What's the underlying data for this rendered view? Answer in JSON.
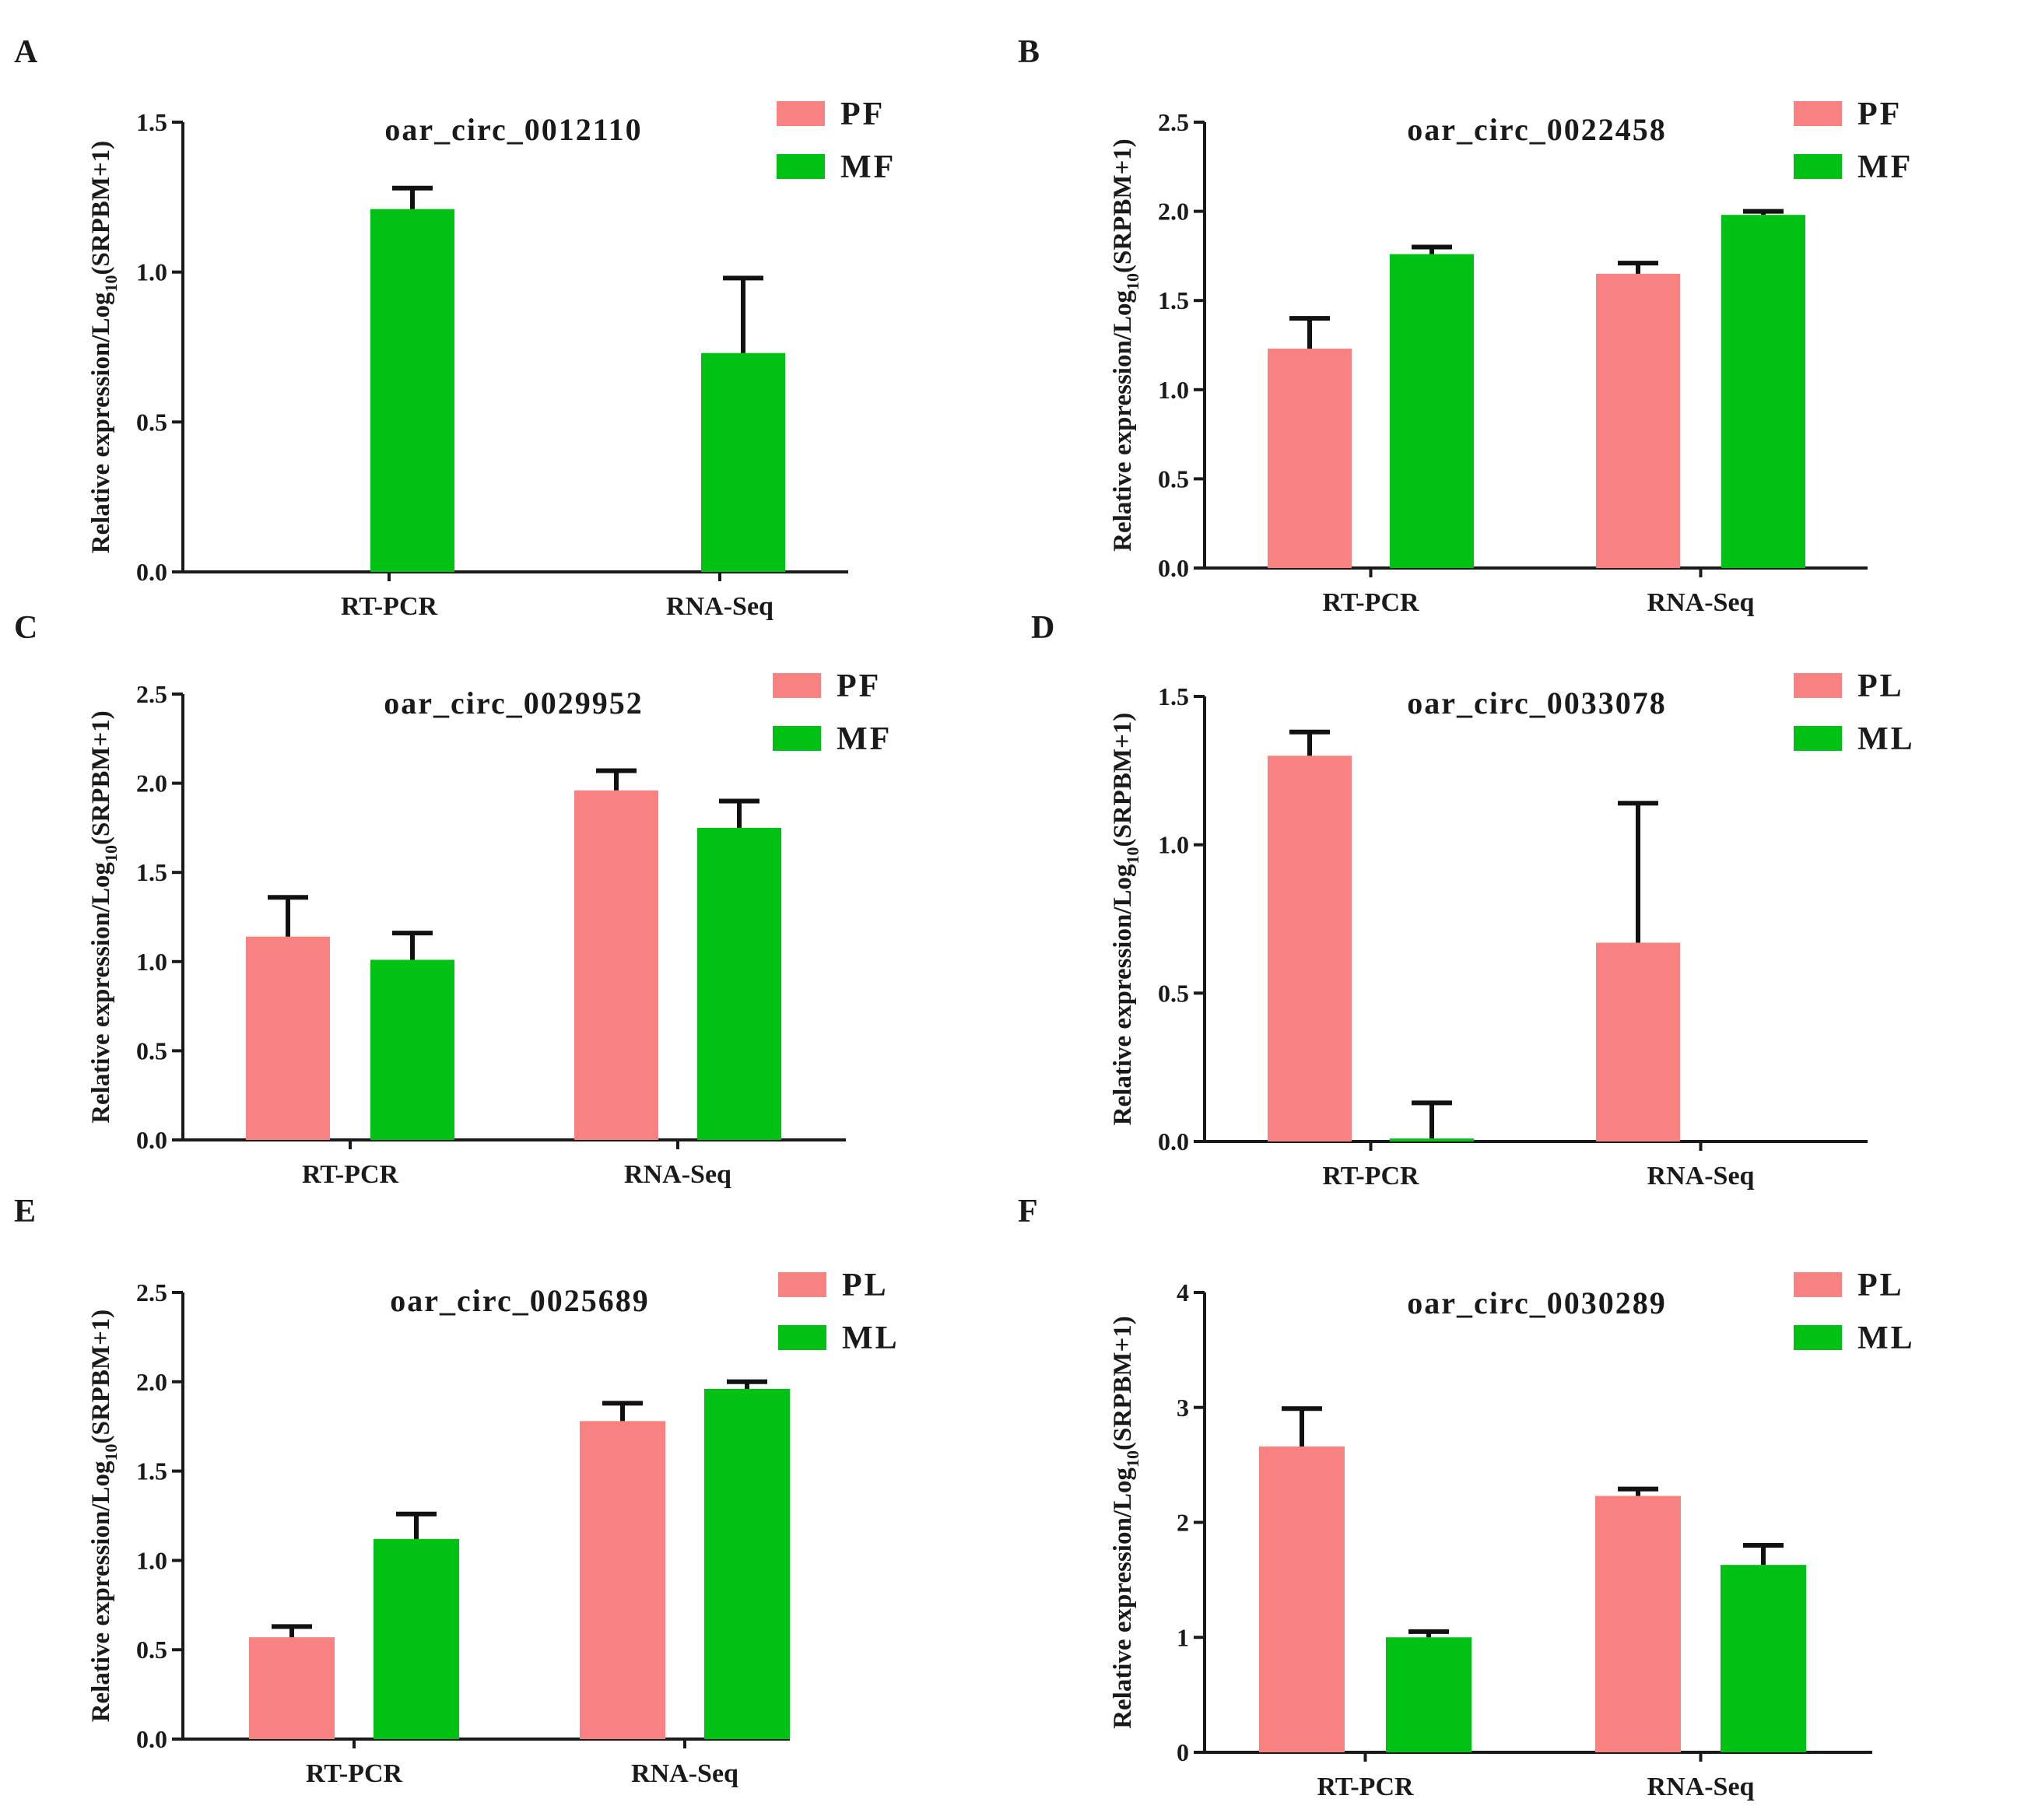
{
  "colors": {
    "series_0": "#f88282",
    "series_1": "#00c114",
    "axis": "#1a1a1a"
  },
  "chart_data": [
    {
      "panel": "A",
      "type": "bar",
      "title": "oar_circ_0012110",
      "ylabel": {
        "before": "Relative expression/Log",
        "sub": "10",
        "after": "(SRPBM+1)"
      },
      "categories": [
        "RT-PCR",
        "RNA-Seq"
      ],
      "ylim": [
        0,
        1.5
      ],
      "yticks": [
        0,
        0.5,
        1.0,
        1.5
      ],
      "tick_decimals": 1,
      "legend_position": "top-right",
      "series": [
        {
          "name": "PF",
          "values": [
            0,
            0
          ],
          "errors": [
            0,
            0
          ]
        },
        {
          "name": "MF",
          "values": [
            1.21,
            0.73
          ],
          "errors": [
            0.07,
            0.25
          ]
        }
      ]
    },
    {
      "panel": "B",
      "type": "bar",
      "title": "oar_circ_0022458",
      "ylabel": {
        "before": "Relative expression/Log",
        "sub": "10",
        "after": "(SRPBM+1)"
      },
      "categories": [
        "RT-PCR",
        "RNA-Seq"
      ],
      "ylim": [
        0,
        2.5
      ],
      "yticks": [
        0,
        0.5,
        1.0,
        1.5,
        2.0,
        2.5
      ],
      "tick_decimals": 1,
      "legend_position": "top-right",
      "series": [
        {
          "name": "PF",
          "values": [
            1.23,
            1.65
          ],
          "errors": [
            0.17,
            0.06
          ]
        },
        {
          "name": "MF",
          "values": [
            1.76,
            1.98
          ],
          "errors": [
            0.04,
            0.02
          ]
        }
      ]
    },
    {
      "panel": "C",
      "type": "bar",
      "title": "oar_circ_0029952",
      "ylabel": {
        "before": "Relative expression/Log",
        "sub": "10",
        "after": "(SRPBM+1)"
      },
      "categories": [
        "RT-PCR",
        "RNA-Seq"
      ],
      "ylim": [
        0,
        2.5
      ],
      "yticks": [
        0,
        0.5,
        1.0,
        1.5,
        2.0,
        2.5
      ],
      "tick_decimals": 1,
      "legend_position": "top-right",
      "series": [
        {
          "name": "PF",
          "values": [
            1.14,
            1.96
          ],
          "errors": [
            0.22,
            0.11
          ]
        },
        {
          "name": "MF",
          "values": [
            1.01,
            1.75
          ],
          "errors": [
            0.15,
            0.15
          ]
        }
      ]
    },
    {
      "panel": "D",
      "type": "bar",
      "title": "oar_circ_0033078",
      "ylabel": {
        "before": "Relative expression/Log",
        "sub": "10",
        "after": "(SRPBM+1)"
      },
      "categories": [
        "RT-PCR",
        "RNA-Seq"
      ],
      "ylim": [
        0,
        1.5
      ],
      "yticks": [
        0,
        0.5,
        1.0,
        1.5
      ],
      "tick_decimals": 1,
      "legend_position": "top-right",
      "series": [
        {
          "name": "PL",
          "values": [
            1.3,
            0.67
          ],
          "errors": [
            0.08,
            0.47
          ]
        },
        {
          "name": "ML",
          "values": [
            0.01,
            0
          ],
          "errors": [
            0.12,
            0
          ]
        }
      ]
    },
    {
      "panel": "E",
      "type": "bar",
      "title": "oar_circ_0025689",
      "ylabel": {
        "before": "Relative expression/Log",
        "sub": "10",
        "after": "(SRPBM+1)"
      },
      "categories": [
        "RT-PCR",
        "RNA-Seq"
      ],
      "ylim": [
        0,
        2.5
      ],
      "yticks": [
        0,
        0.5,
        1.0,
        1.5,
        2.0,
        2.5
      ],
      "tick_decimals": 1,
      "legend_position": "top-right",
      "series": [
        {
          "name": "PL",
          "values": [
            0.57,
            1.78
          ],
          "errors": [
            0.06,
            0.1
          ]
        },
        {
          "name": "ML",
          "values": [
            1.12,
            1.96
          ],
          "errors": [
            0.14,
            0.04
          ]
        }
      ]
    },
    {
      "panel": "F",
      "type": "bar",
      "title": "oar_circ_0030289",
      "ylabel": {
        "before": "Relative expression/Log",
        "sub": "10",
        "after": "(SRPBM+1)"
      },
      "categories": [
        "RT-PCR",
        "RNA-Seq"
      ],
      "ylim": [
        0,
        4
      ],
      "yticks": [
        0,
        1,
        2,
        3,
        4
      ],
      "tick_decimals": 0,
      "legend_position": "top-right",
      "series": [
        {
          "name": "PL",
          "values": [
            2.66,
            2.23
          ],
          "errors": [
            0.33,
            0.06
          ]
        },
        {
          "name": "ML",
          "values": [
            1.0,
            1.63
          ],
          "errors": [
            0.05,
            0.17
          ]
        }
      ]
    }
  ]
}
